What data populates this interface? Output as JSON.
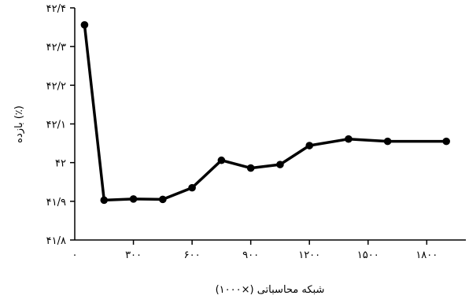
{
  "chart_data": {
    "type": "line",
    "title": "",
    "xlabel": "(۱۰۰۰×) شبکه محاسباتی",
    "ylabel": "بازده (٪)",
    "xlim": [
      0,
      2000
    ],
    "ylim": [
      41.8,
      42.4
    ],
    "x_ticks": [
      {
        "value": 0,
        "label": "۰"
      },
      {
        "value": 300,
        "label": "۳۰۰"
      },
      {
        "value": 600,
        "label": "۶۰۰"
      },
      {
        "value": 900,
        "label": "۹۰۰"
      },
      {
        "value": 1200,
        "label": "۱۲۰۰"
      },
      {
        "value": 1500,
        "label": "۱۵۰۰"
      },
      {
        "value": 1800,
        "label": "۱۸۰۰"
      }
    ],
    "y_ticks": [
      {
        "value": 41.8,
        "label": "۴۱/۸"
      },
      {
        "value": 41.9,
        "label": "۴۱/۹"
      },
      {
        "value": 42.0,
        "label": "۴۲"
      },
      {
        "value": 42.1,
        "label": "۴۲/۱"
      },
      {
        "value": 42.2,
        "label": "۴۲/۲"
      },
      {
        "value": 42.3,
        "label": "۴۲/۳"
      },
      {
        "value": 42.4,
        "label": "۴۲/۴"
      }
    ],
    "series": [
      {
        "x": [
          50,
          150,
          300,
          450,
          600,
          750,
          900,
          1050,
          1200,
          1400,
          1600,
          1900
        ],
        "y": [
          42.356,
          41.903,
          41.906,
          41.905,
          41.935,
          42.006,
          41.986,
          41.995,
          42.044,
          42.061,
          42.055,
          42.055
        ]
      }
    ],
    "grid": false,
    "legend": "none",
    "colors": {
      "line": "#000000",
      "marker": "#000000",
      "axis": "#000000"
    }
  }
}
